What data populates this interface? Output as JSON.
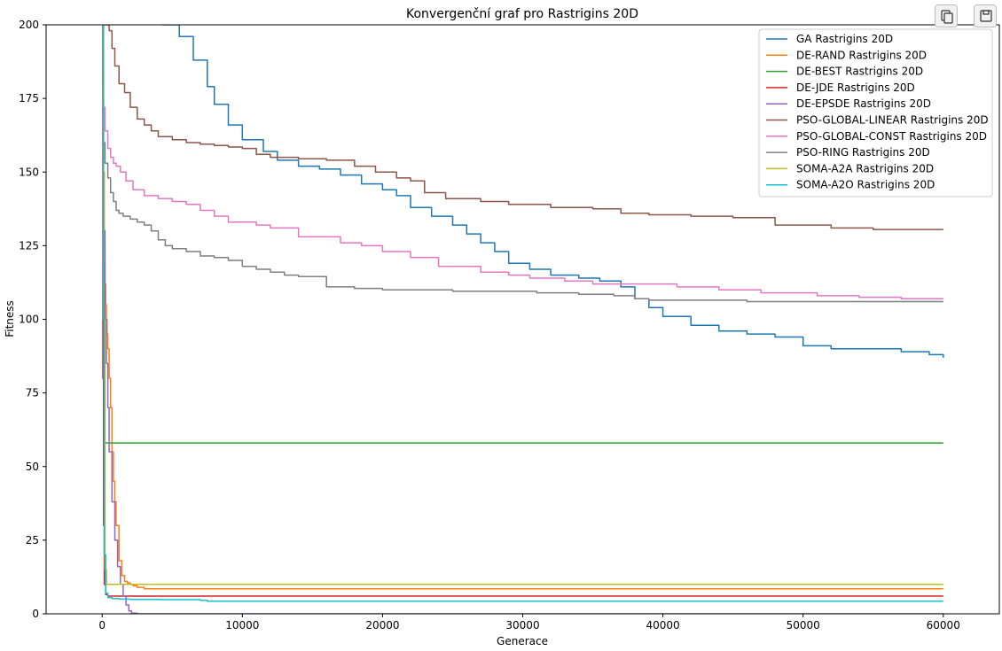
{
  "toolbar": {
    "copy_icon": "copy-icon",
    "save_icon": "save-icon"
  },
  "chart_data": {
    "type": "line",
    "title": "Konvergenční graf pro Rastrigins 20D",
    "xlabel": "Generace",
    "ylabel": "Fitness",
    "xlim": [
      -4000,
      64000
    ],
    "ylim": [
      0,
      200
    ],
    "xticks": [
      0,
      10000,
      20000,
      30000,
      40000,
      50000,
      60000
    ],
    "xtick_labels": [
      "0",
      "10000",
      "20000",
      "30000",
      "40000",
      "50000",
      "60000"
    ],
    "yticks": [
      0,
      25,
      50,
      75,
      100,
      125,
      150,
      175,
      200
    ],
    "ytick_labels": [
      "0",
      "25",
      "50",
      "75",
      "100",
      "125",
      "150",
      "175",
      "200"
    ],
    "grid": false,
    "legend_position": "top-right",
    "series": [
      {
        "name": "GA Rastrigins 20D",
        "color": "#1f77b4",
        "x": [
          4300,
          5500,
          6500,
          7500,
          8000,
          9000,
          10000,
          11500,
          12500,
          14000,
          15500,
          17000,
          18500,
          20000,
          21000,
          22000,
          23500,
          25000,
          26000,
          27000,
          28000,
          29000,
          30500,
          32000,
          34000,
          35500,
          37000,
          38000,
          39000,
          40000,
          42000,
          44000,
          46000,
          48000,
          50000,
          52000,
          55000,
          57000,
          59000,
          60000
        ],
        "y": [
          200,
          196,
          188,
          179,
          173,
          166,
          161,
          157,
          154,
          152,
          151,
          149,
          146,
          144,
          142,
          138,
          135,
          132,
          129,
          126,
          123,
          119,
          117,
          115,
          114,
          113,
          111,
          107,
          104,
          101,
          98,
          96,
          95,
          94,
          91,
          90,
          90,
          89,
          88,
          87
        ]
      },
      {
        "name": "DE-RAND Rastrigins 20D",
        "color": "#ff7f0e",
        "x": [
          0,
          50,
          100,
          150,
          200,
          250,
          300,
          350,
          400,
          500,
          600,
          700,
          800,
          900,
          1000,
          1200,
          1400,
          1600,
          1800,
          2000,
          2200,
          2500,
          3000,
          60000
        ],
        "y": [
          200,
          180,
          150,
          125,
          112,
          105,
          100,
          95,
          90,
          80,
          70,
          55,
          45,
          38,
          30,
          18,
          13,
          11,
          10.5,
          10,
          9.5,
          9,
          8.5,
          8.5
        ]
      },
      {
        "name": "DE-BEST Rastrigins 20D",
        "color": "#2ca02c",
        "x": [
          0,
          80,
          150,
          400,
          60000
        ],
        "y": [
          200,
          120,
          58,
          58,
          58
        ]
      },
      {
        "name": "DE-JDE Rastrigins 20D",
        "color": "#d62728",
        "x": [
          0,
          50,
          100,
          150,
          250,
          400,
          60000
        ],
        "y": [
          200,
          80,
          30,
          10,
          6.5,
          6,
          6
        ]
      },
      {
        "name": "DE-EPSDE Rastrigins 20D",
        "color": "#9467bd",
        "x": [
          0,
          100,
          200,
          300,
          400,
          500,
          700,
          900,
          1100,
          1300,
          1500,
          1700,
          1900,
          2100,
          2500,
          60000
        ],
        "y": [
          200,
          130,
          100,
          85,
          70,
          55,
          38,
          25,
          16,
          10,
          6,
          3,
          1,
          0.2,
          0,
          0
        ]
      },
      {
        "name": "PSO-GLOBAL-LINEAR Rastrigins 20D",
        "color": "#8c564b",
        "x": [
          0,
          300,
          500,
          700,
          900,
          1200,
          1600,
          2000,
          2500,
          3000,
          3500,
          4000,
          5000,
          6000,
          7000,
          8000,
          9000,
          10000,
          11000,
          12000,
          14000,
          16000,
          18000,
          19500,
          21000,
          22000,
          23000,
          24500,
          27000,
          29000,
          32000,
          35000,
          37000,
          39000,
          42000,
          45000,
          48000,
          51000,
          52000,
          55000,
          58000,
          60000
        ],
        "y": [
          200,
          200,
          198,
          192,
          186,
          180,
          177,
          172,
          168,
          166,
          164,
          162,
          161,
          160,
          159.5,
          159,
          158.5,
          158,
          156,
          155,
          154.5,
          154,
          152,
          150,
          148,
          147,
          143,
          141,
          140,
          139,
          138,
          137.5,
          136,
          135.5,
          135,
          134.5,
          132,
          132,
          131,
          130.5,
          130.5,
          130.5
        ]
      },
      {
        "name": "PSO-GLOBAL-CONST Rastrigins 20D",
        "color": "#e377c2",
        "x": [
          0,
          50,
          100,
          200,
          400,
          600,
          800,
          1000,
          1300,
          1700,
          2200,
          3000,
          4000,
          5000,
          6000,
          7000,
          8000,
          9000,
          11000,
          12000,
          14000,
          17000,
          18500,
          20000,
          22000,
          24000,
          27000,
          29000,
          30500,
          32000,
          33000,
          35000,
          38000,
          41000,
          44000,
          47000,
          51000,
          54000,
          57000,
          60000
        ],
        "y": [
          200,
          185,
          172,
          164,
          158,
          155,
          153,
          152,
          150,
          147,
          144,
          142,
          141,
          140,
          139,
          137,
          135,
          133,
          132,
          131,
          128,
          126,
          125,
          123,
          121,
          118,
          116,
          115,
          114,
          114,
          113,
          112,
          112,
          111,
          110,
          109,
          108,
          107.5,
          107,
          107
        ]
      },
      {
        "name": "PSO-RING Rastrigins 20D",
        "color": "#7f7f7f",
        "x": [
          0,
          50,
          100,
          200,
          400,
          600,
          800,
          1000,
          1200,
          1500,
          2000,
          2500,
          3000,
          3500,
          4000,
          4500,
          5000,
          6000,
          7000,
          8000,
          9000,
          10000,
          11000,
          12000,
          13000,
          14000,
          15500,
          16000,
          17000,
          18000,
          20000,
          22000,
          25000,
          28000,
          31000,
          34000,
          36500,
          38000,
          39000,
          42000,
          46000,
          50000,
          54000,
          58000,
          60000
        ],
        "y": [
          200,
          175,
          160,
          153,
          148,
          143,
          140,
          137,
          136,
          135,
          134,
          133,
          132,
          130,
          127,
          125,
          124,
          123,
          121.5,
          121,
          120,
          118,
          117,
          116,
          115,
          114.5,
          114.5,
          111,
          111,
          110.5,
          110,
          110,
          109.5,
          109.5,
          109,
          108.5,
          108,
          107,
          106.5,
          106.5,
          106,
          106,
          106,
          106,
          106
        ]
      },
      {
        "name": "SOMA-A2A Rastrigins 20D",
        "color": "#bcbd22",
        "x": [
          0,
          100,
          200,
          300,
          60000
        ],
        "y": [
          200,
          100,
          15,
          10,
          10
        ]
      },
      {
        "name": "SOMA-A2O Rastrigins 20D",
        "color": "#17becf",
        "x": [
          0,
          80,
          150,
          250,
          400,
          700,
          1200,
          2000,
          4000,
          7000,
          7500,
          60000
        ],
        "y": [
          200,
          100,
          20,
          7,
          5.5,
          5.2,
          5,
          4.9,
          4.8,
          4.6,
          4.3,
          4.3
        ]
      }
    ]
  }
}
